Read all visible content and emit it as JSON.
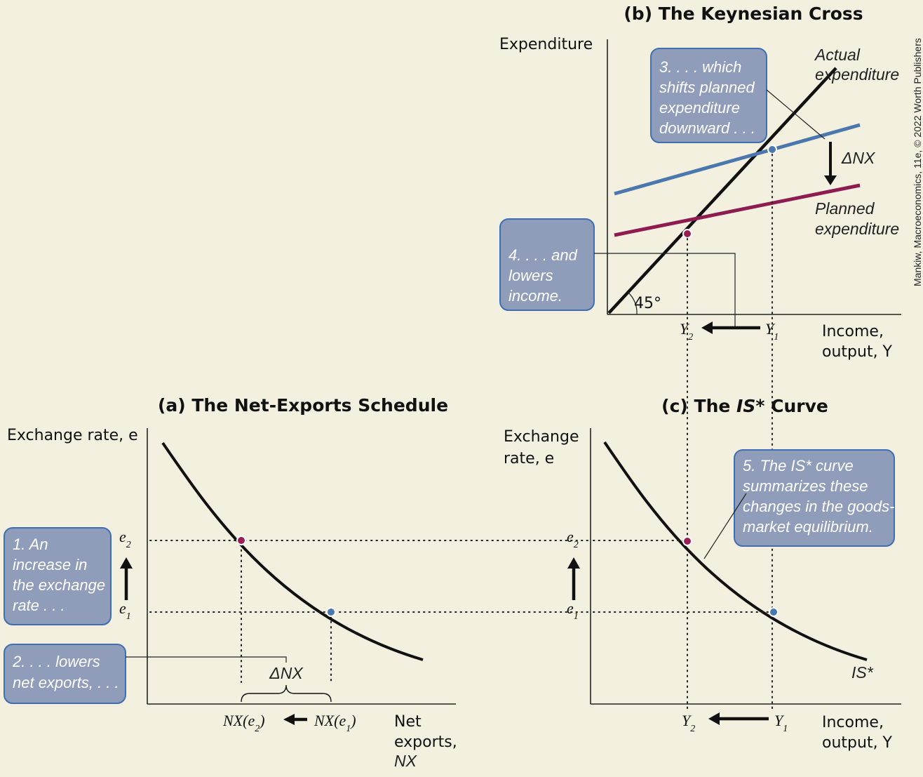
{
  "panel_a": {
    "title": "(a) The Net-Exports Schedule",
    "y_axis_label": "Exchange rate, e",
    "x_axis_label_line1": "Net",
    "x_axis_label_line2": "exports,",
    "x_axis_label_line3": "NX",
    "tick_e2": "e",
    "tick_e2_sub": "2",
    "tick_e1": "e",
    "tick_e1_sub": "1",
    "x_tick_nx_e2": "NX(e",
    "x_tick_nx_e2_sub": "2",
    "x_tick_nx_e1": "NX(e",
    "x_tick_nx_e1_sub": "1",
    "close_paren": ")",
    "delta_nx": "ΔNX",
    "callout_1": [
      "1. An",
      "increase in",
      "the exchange",
      "rate . . ."
    ],
    "callout_2": [
      "2. . . . lowers",
      "net exports, . . ."
    ]
  },
  "panel_b": {
    "title": "(b) The Keynesian Cross",
    "y_axis_label": "Expenditure",
    "x_axis_label_line1": "Income,",
    "x_axis_label_line2": "output, Y",
    "actual_label": [
      "Actual",
      "expenditure"
    ],
    "planned_label": [
      "Planned",
      "expenditure"
    ],
    "angle_label": "45°",
    "delta_nx": "ΔNX",
    "tick_y2": "Y",
    "tick_y2_sub": "2",
    "tick_y1": "Y",
    "tick_y1_sub": "1",
    "callout_3": [
      "3. . . . which",
      "shifts planned",
      "expenditure",
      "downward . . ."
    ],
    "callout_4": [
      "4. . . . and",
      "lowers",
      "income."
    ]
  },
  "panel_c": {
    "title_prefix": "(c) The ",
    "title_italic": "IS*",
    "title_suffix": " Curve",
    "y_axis_label_line1": "Exchange",
    "y_axis_label_line2": "rate, e",
    "x_axis_label_line1": "Income,",
    "x_axis_label_line2": "output, Y",
    "curve_label": "IS*",
    "tick_e2": "e",
    "tick_e2_sub": "2",
    "tick_e1": "e",
    "tick_e1_sub": "1",
    "tick_y2": "Y",
    "tick_y2_sub": "2",
    "tick_y1": "Y",
    "tick_y1_sub": "1",
    "callout_5": [
      "5. The IS* curve",
      "summarizes these",
      "changes in the goods-",
      "market equilibrium."
    ]
  },
  "credit": "Mankiw, Macroeconomics, 11e, © 2022 Worth Publishers",
  "colors": {
    "background": "#f3f0df",
    "box_fill": "#8f9cba",
    "box_border": "#3d6fb4",
    "blue_line": "#4a78ae",
    "magenta_line": "#8e1c50",
    "blue_point": "#4a78ae",
    "magenta_point": "#9a1e52"
  }
}
